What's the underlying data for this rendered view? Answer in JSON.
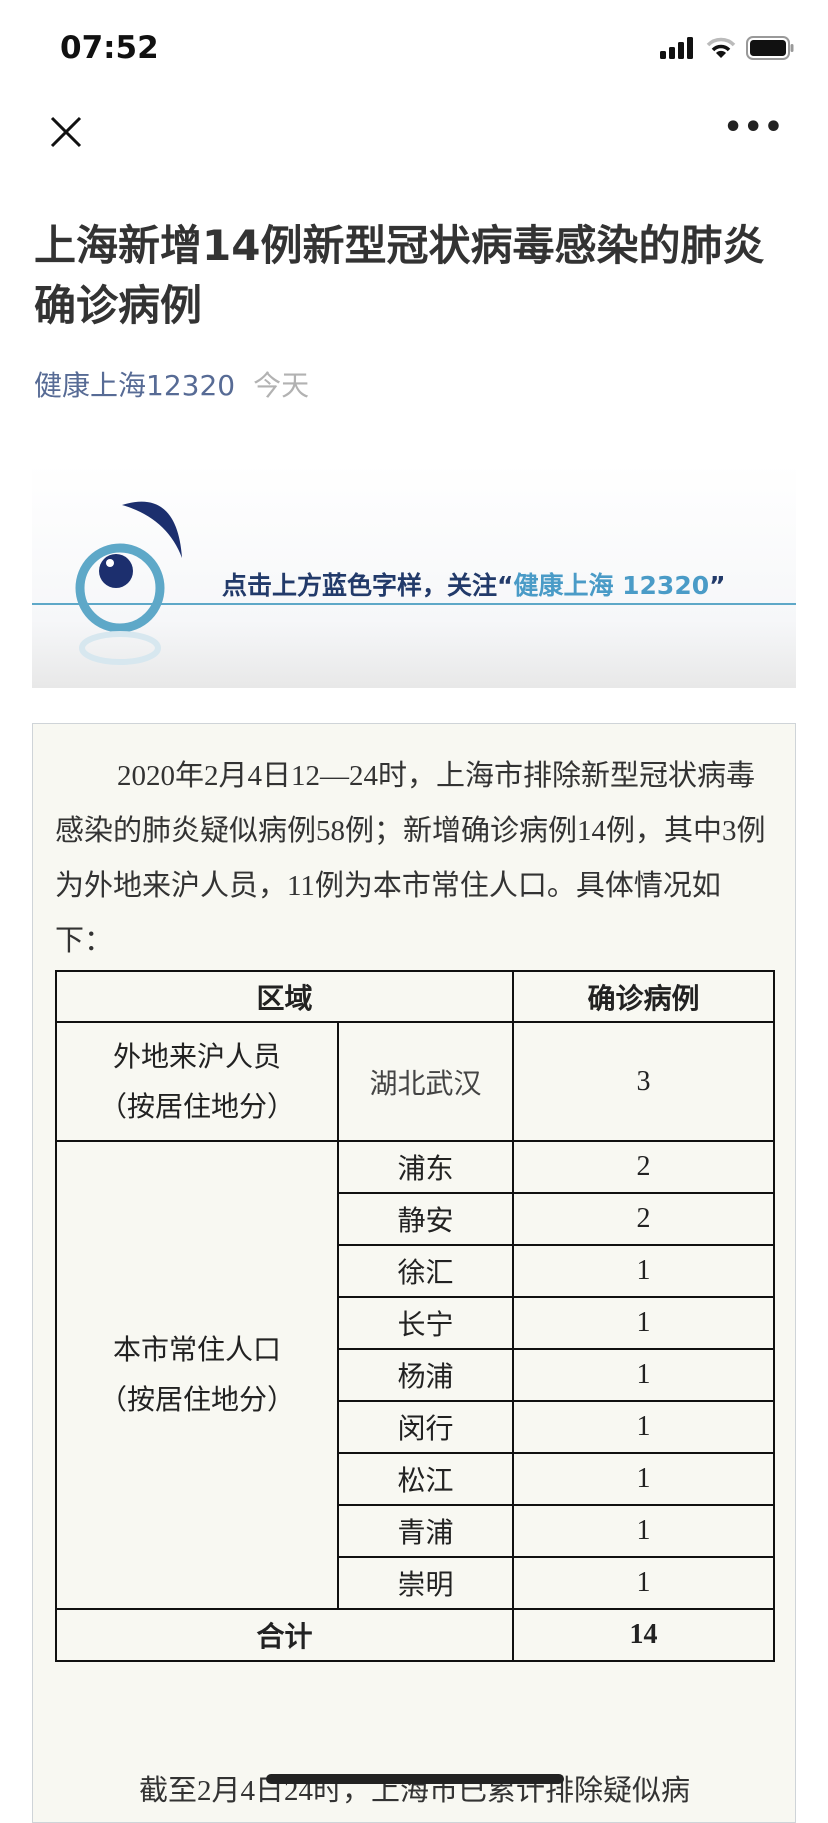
{
  "status_bar": {
    "time": "07:52",
    "icons": [
      "signal-icon",
      "wifi-icon",
      "battery-icon"
    ]
  },
  "nav": {
    "close_icon": "close-icon",
    "more_icon": "more-icon",
    "more_label": "•••"
  },
  "article": {
    "title": "上海新增14例新型冠状病毒感染的肺炎确诊病例",
    "author": "健康上海12320",
    "date": "今天",
    "banner": {
      "text": "点击上方蓝色字样，关注“",
      "highlight": "健康上海 12320",
      "close_quote": "”"
    },
    "paragraph1": "2020年2月4日12—24时，上海市排除新型冠状病毒感染的肺炎疑似病例58例；新增确诊病例14例，其中3例为外地来沪人员，11例为本市常住人口。具体情况如下：",
    "table": {
      "headers": [
        "区域",
        "确诊病例"
      ],
      "group1": {
        "label": "外地来沪人员",
        "sub": "（按居住地分）",
        "rows": [
          {
            "area": "湖北武汉",
            "count": "3"
          }
        ]
      },
      "group2": {
        "label": "本市常住人口",
        "sub": "（按居住地分）",
        "rows": [
          {
            "area": "浦东",
            "count": "2"
          },
          {
            "area": "静安",
            "count": "2"
          },
          {
            "area": "徐汇",
            "count": "1"
          },
          {
            "area": "长宁",
            "count": "1"
          },
          {
            "area": "杨浦",
            "count": "1"
          },
          {
            "area": "闵行",
            "count": "1"
          },
          {
            "area": "松江",
            "count": "1"
          },
          {
            "area": "青浦",
            "count": "1"
          },
          {
            "area": "崇明",
            "count": "1"
          }
        ]
      },
      "total_label": "合计",
      "total": "14"
    },
    "paragraph2": "截至2月4日24时，上海市已累计排除疑似病"
  },
  "colors": {
    "author": "#576b95",
    "article_bg": "#f8f8f2",
    "banner_accent": "#4a9bc7"
  }
}
